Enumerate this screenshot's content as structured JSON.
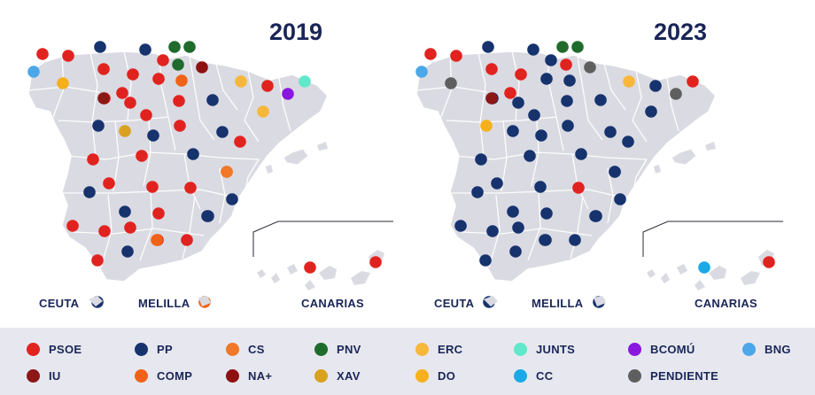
{
  "maps": [
    {
      "year": "2019",
      "labels": {
        "ceuta": "CEUTA",
        "melilla": "MELILLA",
        "canarias": "CANARIAS"
      },
      "ceuta_party": "PP",
      "melilla_party": "COMP",
      "canarias_parties": [
        "PSOE",
        "PSOE"
      ],
      "province_parties": [
        "PSOE",
        "PSOE",
        "BNG",
        "DO",
        "PSOE",
        "PSOE",
        "PP",
        "PP",
        "PNV",
        "PNV",
        "PNV",
        "NA+",
        "PSOE",
        "COMP",
        "PSOE",
        "PSOE",
        "PSOE",
        "ERC",
        "BCOMÚ",
        "JUNTS",
        "IU",
        "PSOE",
        "PSOE",
        "PSOE",
        "PP",
        "ERC",
        "PSOE",
        "PP",
        "PP",
        "XAV",
        "PP",
        "PSOE",
        "PP",
        "PSOE",
        "PSOE",
        "PSOE",
        "PSOE",
        "PSOE",
        "COMP",
        "PP",
        "PSOE",
        "PSOE",
        "PP",
        "PP",
        "PSOE",
        "PSOE",
        "PSOE",
        "PP",
        "PSOE",
        "PSOE",
        "COMP",
        "PP",
        "PP",
        "CS",
        "PSOE"
      ]
    },
    {
      "year": "2023",
      "labels": {
        "ceuta": "CEUTA",
        "melilla": "MELILLA",
        "canarias": "CANARIAS"
      },
      "ceuta_party": "PP",
      "melilla_party": "PP",
      "canarias_parties": [
        "CC",
        "PSOE"
      ],
      "province_parties": [
        "PSOE",
        "PSOE",
        "BNG",
        "PENDIENTE",
        "PSOE",
        "PSOE",
        "PP",
        "PP",
        "PNV",
        "PNV",
        "PSOE",
        "PENDIENTE",
        "PP",
        "PP",
        "PP",
        "PSOE",
        "PP",
        "ERC",
        "PENDIENTE",
        "PSOE",
        "IU",
        "PP",
        "PP",
        "PP",
        "PP",
        "PP",
        "PP",
        "DO",
        "PP",
        "PP",
        "PP",
        "PP",
        "PP",
        "PP",
        "PP",
        "PSOE",
        "PP",
        "PP",
        "PP",
        "PP",
        "PP",
        "PP",
        "PP",
        "PP",
        "PP",
        "PP",
        "PP",
        "PP",
        "PP",
        "PP",
        "PP",
        "PP",
        "PP",
        "PP",
        "PP"
      ]
    }
  ],
  "legend": [
    {
      "name": "PSOE",
      "color": "#e1231f"
    },
    {
      "name": "PP",
      "color": "#16336e"
    },
    {
      "name": "CS",
      "color": "#f07828"
    },
    {
      "name": "PNV",
      "color": "#1f6b2c"
    },
    {
      "name": "ERC",
      "color": "#f7b73a"
    },
    {
      "name": "JUNTS",
      "color": "#5fe8c9"
    },
    {
      "name": "BCOMÚ",
      "color": "#8a17e0"
    },
    {
      "name": "BNG",
      "color": "#4ba7e8"
    },
    {
      "name": "IU",
      "color": "#8b1717"
    },
    {
      "name": "COMP",
      "color": "#f06218"
    },
    {
      "name": "NA+",
      "color": "#8e1010"
    },
    {
      "name": "XAV",
      "color": "#d8a21f"
    },
    {
      "name": "DO",
      "color": "#f5b01b"
    },
    {
      "name": "CC",
      "color": "#19a9e6"
    },
    {
      "name": "PENDIENTE",
      "color": "#5f5f5f"
    }
  ]
}
